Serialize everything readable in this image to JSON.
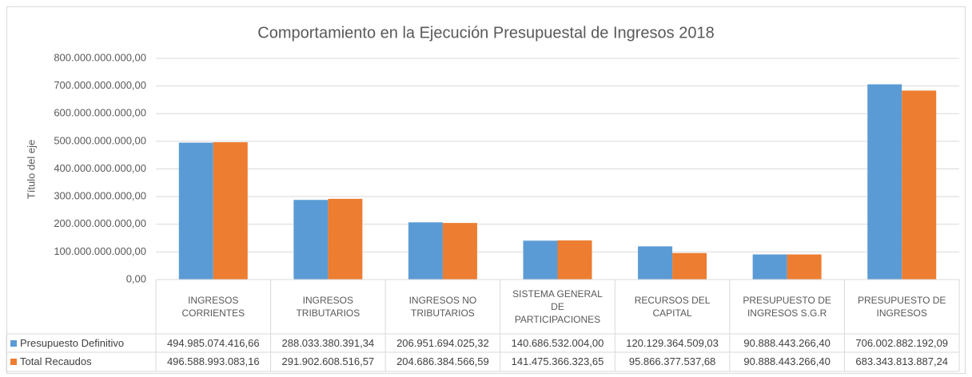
{
  "chart_data": {
    "type": "bar",
    "title": "Comportamiento en la  Ejecución Presupuestal de Ingresos 2018",
    "y_label": "Título del eje",
    "categories": [
      "INGRESOS CORRIENTES",
      "INGRESOS TRIBUTARIOS",
      "INGRESOS NO TRIBUTARIOS",
      "SISTEMA GENERAL DE PARTICIPACIONES",
      "RECURSOS DEL CAPITAL",
      "PRESUPUESTO DE INGRESOS S.G.R",
      "PRESUPUESTO DE INGRESOS"
    ],
    "series": [
      {
        "name": "Presupuesto Definitivo",
        "color": "#5b9bd5",
        "values": [
          494985074416.66,
          288033380391.34,
          206951694025.32,
          140686532004.0,
          120129364509.03,
          90888443266.4,
          706002882192.09
        ],
        "value_labels": [
          "494.985.074.416,66",
          "288.033.380.391,34",
          "206.951.694.025,32",
          "140.686.532.004,00",
          "120.129.364.509,03",
          "90.888.443.266,40",
          "706.002.882.192,09"
        ]
      },
      {
        "name": "Total Recaudos",
        "color": "#ed7d31",
        "values": [
          496588993083.16,
          291902608516.57,
          204686384566.59,
          141475366323.65,
          95866377537.68,
          90888443266.4,
          683343813887.24
        ],
        "value_labels": [
          "496.588.993.083,16",
          "291.902.608.516,57",
          "204.686.384.566,59",
          "141.475.366.323,65",
          "95.866.377.537,68",
          "90.888.443.266,40",
          "683.343.813.887,24"
        ]
      }
    ],
    "ylim": [
      0,
      800000000000
    ],
    "yticks": [
      {
        "value": 0,
        "label": "0,00"
      },
      {
        "value": 100000000000,
        "label": "100.000.000.000,00"
      },
      {
        "value": 200000000000,
        "label": "200.000.000.000,00"
      },
      {
        "value": 300000000000,
        "label": "300.000.000.000,00"
      },
      {
        "value": 400000000000,
        "label": "400.000.000.000,00"
      },
      {
        "value": 500000000000,
        "label": "500.000.000.000,00"
      },
      {
        "value": 600000000000,
        "label": "600.000.000.000,00"
      },
      {
        "value": 700000000000,
        "label": "700.000.000.000,00"
      },
      {
        "value": 800000000000,
        "label": "800.000.000.000,00"
      }
    ],
    "grid": true
  }
}
